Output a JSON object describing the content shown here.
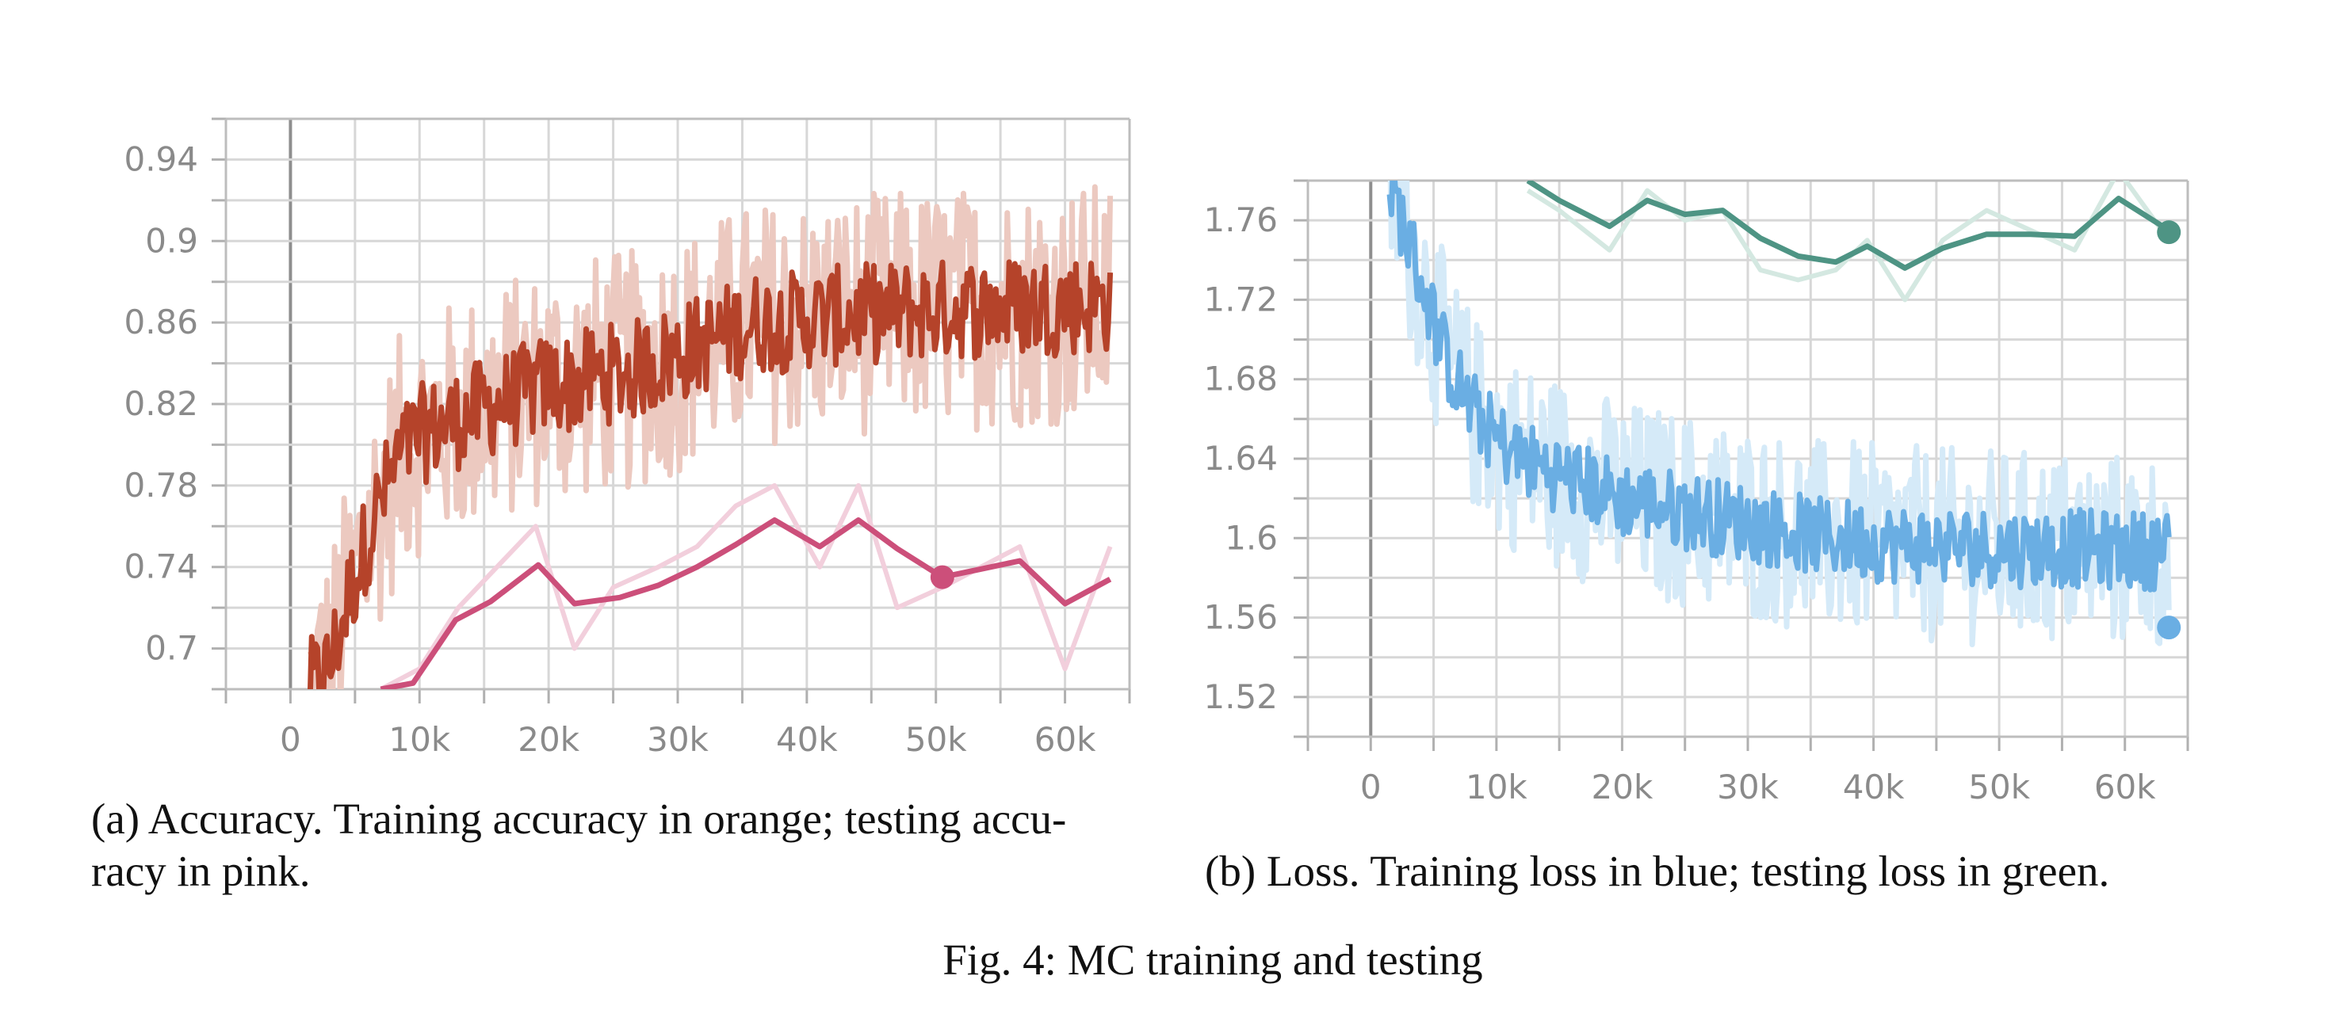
{
  "figure": {
    "caption": "Fig. 4: MC training and testing"
  },
  "chart_data": [
    {
      "type": "line",
      "caption_line1": "(a) Accuracy. Training accuracy in orange; testing accu-",
      "caption_line2": "racy in pink.",
      "xlim": [
        -5000,
        65000
      ],
      "ylim": [
        0.68,
        0.96
      ],
      "x_ticks": [
        {
          "value": 0,
          "label": "0"
        },
        {
          "value": 10000,
          "label": "10k"
        },
        {
          "value": 20000,
          "label": "20k"
        },
        {
          "value": 30000,
          "label": "30k"
        },
        {
          "value": 40000,
          "label": "40k"
        },
        {
          "value": 50000,
          "label": "50k"
        },
        {
          "value": 60000,
          "label": "60k"
        }
      ],
      "y_ticks": [
        {
          "value": 0.7,
          "label": "0.7"
        },
        {
          "value": 0.74,
          "label": "0.74"
        },
        {
          "value": 0.78,
          "label": "0.78"
        },
        {
          "value": 0.82,
          "label": "0.82"
        },
        {
          "value": 0.86,
          "label": "0.86"
        },
        {
          "value": 0.9,
          "label": "0.9"
        },
        {
          "value": 0.94,
          "label": "0.94"
        }
      ],
      "grid": true,
      "series": [
        {
          "color": "#b5432a",
          "raw_color": "#ecc9c0",
          "points": [
            [
              1500,
              0.68
            ],
            [
              3000,
              0.69
            ],
            [
              4500,
              0.725
            ],
            [
              5500,
              0.745
            ],
            [
              6500,
              0.765
            ],
            [
              7500,
              0.78
            ],
            [
              8500,
              0.795
            ],
            [
              10000,
              0.805
            ],
            [
              12000,
              0.81
            ],
            [
              14000,
              0.815
            ],
            [
              16000,
              0.82
            ],
            [
              18000,
              0.825
            ],
            [
              20000,
              0.83
            ],
            [
              22000,
              0.83
            ],
            [
              24000,
              0.835
            ],
            [
              26000,
              0.835
            ],
            [
              28000,
              0.84
            ],
            [
              30000,
              0.845
            ],
            [
              32000,
              0.85
            ],
            [
              34000,
              0.855
            ],
            [
              36000,
              0.86
            ],
            [
              38000,
              0.86
            ],
            [
              40000,
              0.862
            ],
            [
              42000,
              0.863
            ],
            [
              44000,
              0.864
            ],
            [
              46000,
              0.865
            ],
            [
              48000,
              0.866
            ],
            [
              50000,
              0.866
            ],
            [
              52000,
              0.867
            ],
            [
              54000,
              0.867
            ],
            [
              56000,
              0.868
            ],
            [
              58000,
              0.868
            ],
            [
              60000,
              0.869
            ],
            [
              62000,
              0.869
            ],
            [
              63500,
              0.87
            ]
          ],
          "noise": 0.025,
          "raw_noise": 0.06
        },
        {
          "color": "#cc4f7a",
          "raw_color": "#f2cfdc",
          "points": [
            [
              7000,
              0.68
            ],
            [
              9500,
              0.683
            ],
            [
              12800,
              0.714
            ],
            [
              15500,
              0.723
            ],
            [
              19200,
              0.741
            ],
            [
              22000,
              0.722
            ],
            [
              25500,
              0.725
            ],
            [
              28500,
              0.731
            ],
            [
              31500,
              0.74
            ],
            [
              34500,
              0.751
            ],
            [
              37500,
              0.763
            ],
            [
              41000,
              0.75
            ],
            [
              44000,
              0.763
            ],
            [
              47000,
              0.749
            ],
            [
              50500,
              0.735
            ],
            [
              53500,
              0.739
            ],
            [
              56500,
              0.743
            ],
            [
              60000,
              0.722
            ],
            [
              63500,
              0.734
            ]
          ],
          "raw_points": [
            [
              7000,
              0.68
            ],
            [
              10000,
              0.69
            ],
            [
              13000,
              0.72
            ],
            [
              16000,
              0.74
            ],
            [
              19000,
              0.76
            ],
            [
              22000,
              0.7
            ],
            [
              25000,
              0.73
            ],
            [
              28500,
              0.74
            ],
            [
              31500,
              0.75
            ],
            [
              34500,
              0.77
            ],
            [
              37500,
              0.78
            ],
            [
              41000,
              0.74
            ],
            [
              44000,
              0.78
            ],
            [
              47000,
              0.72
            ],
            [
              50500,
              0.73
            ],
            [
              53500,
              0.74
            ],
            [
              56500,
              0.75
            ],
            [
              60000,
              0.69
            ],
            [
              63500,
              0.75
            ]
          ],
          "end_marker": [
            50500,
            0.735
          ]
        }
      ]
    },
    {
      "type": "line",
      "caption_line1": "(b) Loss. Training loss in blue; testing loss in green.",
      "xlim": [
        -5000,
        65000
      ],
      "ylim": [
        1.5,
        1.78
      ],
      "x_ticks": [
        {
          "value": 0,
          "label": "0"
        },
        {
          "value": 10000,
          "label": "10k"
        },
        {
          "value": 20000,
          "label": "20k"
        },
        {
          "value": 30000,
          "label": "30k"
        },
        {
          "value": 40000,
          "label": "40k"
        },
        {
          "value": 50000,
          "label": "50k"
        },
        {
          "value": 60000,
          "label": "60k"
        }
      ],
      "y_ticks": [
        {
          "value": 1.52,
          "label": "1.52"
        },
        {
          "value": 1.56,
          "label": "1.56"
        },
        {
          "value": 1.6,
          "label": "1.6"
        },
        {
          "value": 1.64,
          "label": "1.64"
        },
        {
          "value": 1.68,
          "label": "1.68"
        },
        {
          "value": 1.72,
          "label": "1.72"
        },
        {
          "value": 1.76,
          "label": "1.76"
        }
      ],
      "grid": true,
      "series": [
        {
          "color": "#6aaee3",
          "raw_color": "#d5eaf8",
          "points": [
            [
              1500,
              1.78
            ],
            [
              3000,
              1.75
            ],
            [
              4500,
              1.72
            ],
            [
              6000,
              1.69
            ],
            [
              8000,
              1.665
            ],
            [
              10000,
              1.65
            ],
            [
              12000,
              1.64
            ],
            [
              14000,
              1.635
            ],
            [
              16000,
              1.63
            ],
            [
              18000,
              1.625
            ],
            [
              20000,
              1.62
            ],
            [
              22000,
              1.618
            ],
            [
              24000,
              1.615
            ],
            [
              26000,
              1.613
            ],
            [
              28000,
              1.61
            ],
            [
              30000,
              1.608
            ],
            [
              32000,
              1.605
            ],
            [
              34000,
              1.603
            ],
            [
              36000,
              1.6
            ],
            [
              38000,
              1.6
            ],
            [
              40000,
              1.598
            ],
            [
              42000,
              1.597
            ],
            [
              44000,
              1.597
            ],
            [
              46000,
              1.596
            ],
            [
              48000,
              1.596
            ],
            [
              50000,
              1.595
            ],
            [
              52000,
              1.595
            ],
            [
              54000,
              1.595
            ],
            [
              56000,
              1.595
            ],
            [
              58000,
              1.594
            ],
            [
              60000,
              1.594
            ],
            [
              62000,
              1.594
            ],
            [
              63500,
              1.594
            ]
          ],
          "noise": 0.02,
          "raw_noise": 0.05,
          "end_marker": [
            63500,
            1.555
          ]
        },
        {
          "color": "#4e9484",
          "raw_color": "#d4e8e1",
          "points": [
            [
              12500,
              1.78
            ],
            [
              15000,
              1.77
            ],
            [
              19000,
              1.757
            ],
            [
              22000,
              1.77
            ],
            [
              25000,
              1.763
            ],
            [
              28000,
              1.765
            ],
            [
              31000,
              1.751
            ],
            [
              34000,
              1.742
            ],
            [
              37000,
              1.739
            ],
            [
              39500,
              1.747
            ],
            [
              42500,
              1.736
            ],
            [
              45500,
              1.746
            ],
            [
              49000,
              1.753
            ],
            [
              52500,
              1.753
            ],
            [
              56000,
              1.752
            ],
            [
              59500,
              1.771
            ],
            [
              63500,
              1.755
            ]
          ],
          "raw_points": [
            [
              12500,
              1.775
            ],
            [
              15000,
              1.765
            ],
            [
              19000,
              1.745
            ],
            [
              22000,
              1.775
            ],
            [
              25000,
              1.76
            ],
            [
              28000,
              1.765
            ],
            [
              31000,
              1.735
            ],
            [
              34000,
              1.73
            ],
            [
              37000,
              1.735
            ],
            [
              39500,
              1.75
            ],
            [
              42500,
              1.72
            ],
            [
              45500,
              1.75
            ],
            [
              49000,
              1.765
            ],
            [
              52500,
              1.755
            ],
            [
              56000,
              1.745
            ],
            [
              59500,
              1.785
            ],
            [
              63500,
              1.75
            ]
          ],
          "end_marker": [
            63500,
            1.754
          ]
        }
      ]
    }
  ]
}
